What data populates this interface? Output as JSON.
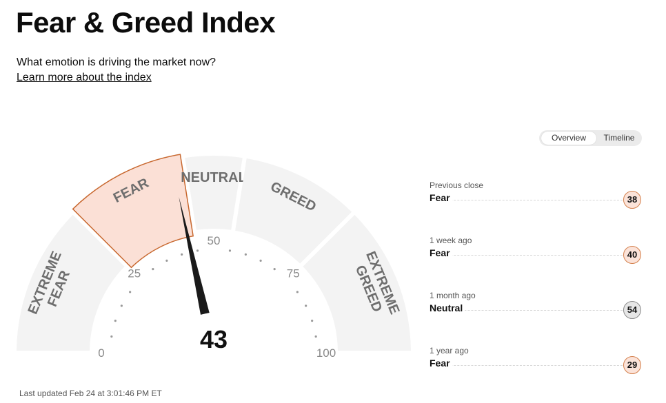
{
  "header": {
    "title": "Fear & Greed Index",
    "subtitle": "What emotion is driving the market now?",
    "learn_more": "Learn more about the index"
  },
  "gauge": {
    "value": 43,
    "value_text": "43",
    "min": 0,
    "max": 100,
    "active_segment": "FEAR",
    "segments": [
      {
        "lines": [
          "EXTREME",
          "FEAR"
        ],
        "from": 0,
        "to": 25
      },
      {
        "lines": [
          "FEAR"
        ],
        "from": 25,
        "to": 45
      },
      {
        "lines": [
          "NEUTRAL"
        ],
        "from": 45,
        "to": 55
      },
      {
        "lines": [
          "GREED"
        ],
        "from": 55,
        "to": 75
      },
      {
        "lines": [
          "EXTREME",
          "GREED"
        ],
        "from": 75,
        "to": 100
      }
    ],
    "tick_labels": [
      "0",
      "25",
      "50",
      "75",
      "100"
    ],
    "colors": {
      "segment_bg": "#f3f3f3",
      "active_fill": "#fbe0d6",
      "active_stroke": "#c8682f",
      "needle": "#1a1a1a"
    }
  },
  "toggle": {
    "overview": "Overview",
    "timeline": "Timeline",
    "active": "Overview"
  },
  "history": [
    {
      "label": "Previous close",
      "rating": "Fear",
      "value": "38",
      "tone": "fear"
    },
    {
      "label": "1 week ago",
      "rating": "Fear",
      "value": "40",
      "tone": "fear"
    },
    {
      "label": "1 month ago",
      "rating": "Neutral",
      "value": "54",
      "tone": "neutral"
    },
    {
      "label": "1 year ago",
      "rating": "Fear",
      "value": "29",
      "tone": "fear"
    }
  ],
  "last_updated": "Last updated Feb 24 at 3:01:46 PM ET"
}
